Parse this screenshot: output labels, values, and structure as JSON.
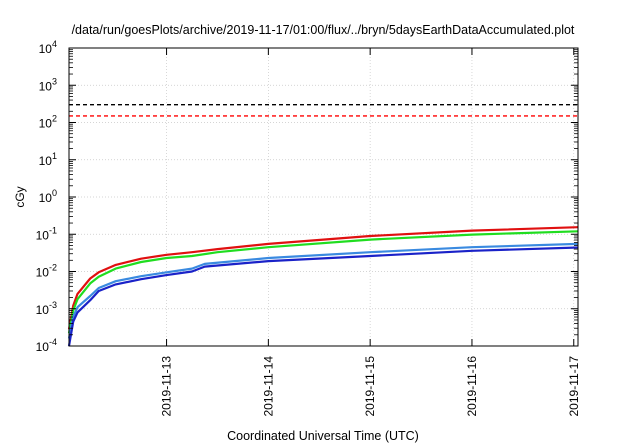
{
  "chart_data": {
    "type": "line",
    "title": "/data/run/goesPlots/archive/2019-11-17/01:00/flux/../bryn/5daysEarthDataAccumulated.plot",
    "xlabel": "Coordinated Universal Time (UTC)",
    "ylabel": "cGy",
    "y_scale": "log",
    "ylim": [
      0.0001,
      10000
    ],
    "y_ticks": [
      {
        "value": 0.0001,
        "base": "10",
        "exp": "-4"
      },
      {
        "value": 0.001,
        "base": "10",
        "exp": "-3"
      },
      {
        "value": 0.01,
        "base": "10",
        "exp": "-2"
      },
      {
        "value": 0.1,
        "base": "10",
        "exp": "-1"
      },
      {
        "value": 1,
        "base": "10",
        "exp": "0"
      },
      {
        "value": 10,
        "base": "10",
        "exp": "1"
      },
      {
        "value": 100,
        "base": "10",
        "exp": "2"
      },
      {
        "value": 1000,
        "base": "10",
        "exp": "3"
      },
      {
        "value": 10000,
        "base": "10",
        "exp": "4"
      }
    ],
    "xlim": [
      "2019-11-12T01:00",
      "2019-11-17T01:00"
    ],
    "x_ticks": [
      "2019-11-13",
      "2019-11-14",
      "2019-11-15",
      "2019-11-16",
      "2019-11-17"
    ],
    "grid": true,
    "legend": "none",
    "thresholds": [
      {
        "value": 300,
        "color": "#000000",
        "style": "dashed"
      },
      {
        "value": 150,
        "color": "#ff0000",
        "style": "dashed"
      }
    ],
    "series": [
      {
        "color": "#e01010",
        "points": [
          [
            "2019-11-12T01:00",
            0.00028
          ],
          [
            "2019-11-12T02:00",
            0.0012
          ],
          [
            "2019-11-12T03:00",
            0.0025
          ],
          [
            "2019-11-12T06:00",
            0.0065
          ],
          [
            "2019-11-12T08:00",
            0.0095
          ],
          [
            "2019-11-12T12:00",
            0.015
          ],
          [
            "2019-11-12T18:00",
            0.022
          ],
          [
            "2019-11-13T00:00",
            0.028
          ],
          [
            "2019-11-13T06:00",
            0.033
          ],
          [
            "2019-11-13T12:00",
            0.04
          ],
          [
            "2019-11-14T00:00",
            0.055
          ],
          [
            "2019-11-15T00:00",
            0.09
          ],
          [
            "2019-11-16T00:00",
            0.125
          ],
          [
            "2019-11-17T01:00",
            0.155
          ]
        ]
      },
      {
        "color": "#20dd20",
        "points": [
          [
            "2019-11-12T01:00",
            0.00022
          ],
          [
            "2019-11-12T02:00",
            0.0009
          ],
          [
            "2019-11-12T03:00",
            0.0018
          ],
          [
            "2019-11-12T06:00",
            0.0048
          ],
          [
            "2019-11-12T08:00",
            0.0072
          ],
          [
            "2019-11-12T12:00",
            0.012
          ],
          [
            "2019-11-12T18:00",
            0.018
          ],
          [
            "2019-11-13T00:00",
            0.023
          ],
          [
            "2019-11-13T06:00",
            0.026
          ],
          [
            "2019-11-13T12:00",
            0.033
          ],
          [
            "2019-11-14T00:00",
            0.045
          ],
          [
            "2019-11-15T00:00",
            0.072
          ],
          [
            "2019-11-16T00:00",
            0.098
          ],
          [
            "2019-11-17T01:00",
            0.12
          ]
        ]
      },
      {
        "color": "#3a8ae0",
        "points": [
          [
            "2019-11-12T01:00",
            0.00016
          ],
          [
            "2019-11-12T02:00",
            0.0006
          ],
          [
            "2019-11-12T03:00",
            0.0011
          ],
          [
            "2019-11-12T06:00",
            0.0022
          ],
          [
            "2019-11-12T08:00",
            0.0036
          ],
          [
            "2019-11-12T12:00",
            0.0055
          ],
          [
            "2019-11-12T18:00",
            0.0075
          ],
          [
            "2019-11-13T00:00",
            0.0095
          ],
          [
            "2019-11-13T06:00",
            0.012
          ],
          [
            "2019-11-13T09:00",
            0.016
          ],
          [
            "2019-11-14T00:00",
            0.023
          ],
          [
            "2019-11-15T00:00",
            0.033
          ],
          [
            "2019-11-16T00:00",
            0.045
          ],
          [
            "2019-11-17T01:00",
            0.055
          ]
        ]
      },
      {
        "color": "#1a22c8",
        "points": [
          [
            "2019-11-12T01:00",
            0.0001
          ],
          [
            "2019-11-12T02:00",
            0.00045
          ],
          [
            "2019-11-12T03:00",
            0.0008
          ],
          [
            "2019-11-12T06:00",
            0.0017
          ],
          [
            "2019-11-12T08:00",
            0.003
          ],
          [
            "2019-11-12T12:00",
            0.0045
          ],
          [
            "2019-11-12T18:00",
            0.0062
          ],
          [
            "2019-11-13T00:00",
            0.008
          ],
          [
            "2019-11-13T06:00",
            0.01
          ],
          [
            "2019-11-13T09:00",
            0.0135
          ],
          [
            "2019-11-14T00:00",
            0.019
          ],
          [
            "2019-11-15T00:00",
            0.026
          ],
          [
            "2019-11-16T00:00",
            0.036
          ],
          [
            "2019-11-17T01:00",
            0.044
          ]
        ]
      }
    ]
  }
}
